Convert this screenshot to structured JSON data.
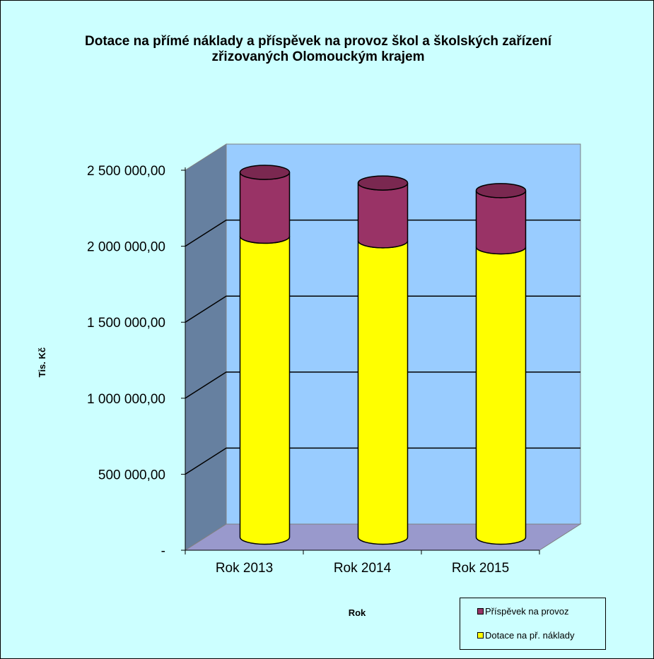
{
  "chart_data": {
    "type": "bar",
    "stacked": true,
    "three_d": true,
    "title": "Dotace na přímé náklady a příspěvek na provoz škol a školských zařízení zřizovaných Olomouckým krajem",
    "xlabel": "Rok",
    "ylabel": "Tis. Kč",
    "categories": [
      "Rok 2013",
      "Rok 2014",
      "Rok 2015"
    ],
    "ylim": [
      0,
      2500000
    ],
    "y_ticks": [
      0,
      500000,
      1000000,
      1500000,
      2000000,
      2500000
    ],
    "y_tick_labels": [
      "-",
      "500 000,00",
      "1 000 000,00",
      "1 500 000,00",
      "2 000 000,00",
      "2 500 000,00"
    ],
    "series": [
      {
        "name": "Dotace na př. náklady",
        "color": "#ffff00",
        "values": [
          1980000,
          1950000,
          1910000
        ]
      },
      {
        "name": "Příspěvek na provoz",
        "color": "#993366",
        "values": [
          420000,
          380000,
          370000
        ]
      }
    ],
    "legend": {
      "position": "bottom-right",
      "entries": [
        "Příspěvek na provoz",
        "Dotace na př. náklady"
      ]
    },
    "grid": true,
    "colors": {
      "background": "#ccffff",
      "back_wall": "#99ccff",
      "side_wall": "#6680a0",
      "floor": "#9999cc",
      "gridline": "#000000"
    }
  }
}
